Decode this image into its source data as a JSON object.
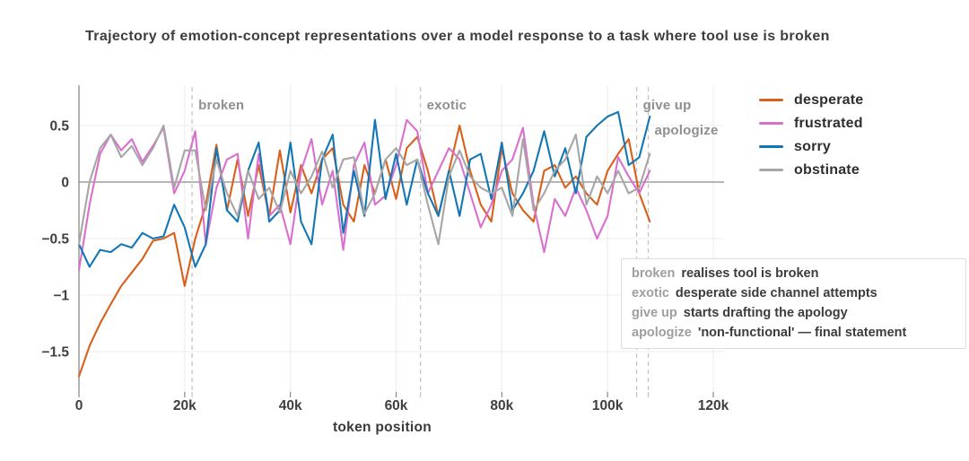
{
  "title": "Trajectory of emotion-concept representations over a model response to a task where tool use is broken",
  "chart_data": {
    "type": "line",
    "title": "Trajectory of emotion-concept representations over a model response to a task where tool use is broken",
    "xlabel": "token position",
    "ylabel": "",
    "xlim": [
      0,
      120
    ],
    "ylim": [
      -1.87,
      0.86
    ],
    "grid": true,
    "legend_position": "right",
    "x_tick_labels": [
      "0",
      "20k",
      "40k",
      "60k",
      "80k",
      "100k",
      "120k"
    ],
    "x_tick_values": [
      0,
      20,
      40,
      60,
      80,
      100,
      120
    ],
    "y_tick_labels": [
      "0.5",
      "0",
      "−0.5",
      "−1",
      "−1.5"
    ],
    "y_tick_values": [
      0.5,
      0,
      -0.5,
      -1,
      -1.5
    ],
    "x": [
      0,
      2,
      4,
      6,
      8,
      10,
      12,
      14,
      16,
      18,
      20,
      22,
      24,
      26,
      28,
      30,
      32,
      34,
      36,
      38,
      40,
      42,
      44,
      46,
      48,
      50,
      52,
      54,
      56,
      58,
      60,
      62,
      64,
      66,
      68,
      70,
      72,
      74,
      76,
      78,
      80,
      82,
      84,
      86,
      88,
      90,
      92,
      94,
      96,
      98,
      100,
      102,
      104,
      106,
      108
    ],
    "series": [
      {
        "name": "desperate",
        "color": "#d9601a",
        "values": [
          -1.72,
          -1.45,
          -1.25,
          -1.08,
          -0.92,
          -0.8,
          -0.68,
          -0.52,
          -0.5,
          -0.45,
          -0.92,
          -0.5,
          -0.2,
          0.33,
          -0.25,
          0.2,
          -0.3,
          0.15,
          -0.3,
          0.28,
          -0.27,
          0.15,
          -0.1,
          0.2,
          0.3,
          -0.2,
          -0.35,
          0.15,
          -0.1,
          0.2,
          -0.15,
          0.3,
          0.4,
          0.1,
          -0.3,
          0.1,
          0.5,
          0.1,
          -0.2,
          -0.35,
          0.3,
          -0.1,
          -0.25,
          -0.35,
          0.1,
          0.15,
          -0.05,
          0.05,
          -0.1,
          -0.2,
          0.1,
          0.25,
          0.38,
          -0.1,
          -0.35
        ]
      },
      {
        "name": "frustrated",
        "color": "#da70ce",
        "values": [
          -0.78,
          -0.2,
          0.25,
          0.42,
          0.28,
          0.38,
          0.18,
          0.32,
          0.48,
          -0.1,
          0.1,
          0.45,
          -0.55,
          -0.05,
          0.2,
          0.25,
          -0.5,
          0.25,
          -0.3,
          -0.2,
          -0.55,
          0.1,
          0.38,
          -0.2,
          0.1,
          -0.6,
          0.15,
          0.35,
          -0.2,
          -0.12,
          0.15,
          0.55,
          0.45,
          -0.1,
          0.1,
          0.3,
          0.2,
          -0.1,
          -0.4,
          -0.2,
          0.1,
          0.2,
          0.48,
          -0.2,
          -0.62,
          -0.15,
          -0.3,
          -0.05,
          -0.25,
          -0.5,
          -0.3,
          0.22,
          0.05,
          -0.1,
          0.1
        ]
      },
      {
        "name": "sorry",
        "color": "#1277b5",
        "values": [
          -0.55,
          -0.75,
          -0.6,
          -0.62,
          -0.55,
          -0.58,
          -0.45,
          -0.5,
          -0.48,
          -0.2,
          -0.4,
          -0.75,
          -0.55,
          0.3,
          -0.25,
          -0.35,
          0.1,
          0.35,
          -0.35,
          -0.25,
          0.35,
          -0.35,
          -0.55,
          0.2,
          0.42,
          -0.45,
          0.1,
          -0.3,
          0.55,
          -0.15,
          0.25,
          -0.2,
          0.2,
          -0.1,
          -0.3,
          0.1,
          -0.3,
          0.2,
          0.25,
          -0.15,
          0.35,
          -0.25,
          -0.1,
          0.1,
          0.45,
          0.05,
          0.3,
          -0.1,
          0.4,
          0.5,
          0.58,
          0.62,
          0.15,
          0.22,
          0.58
        ]
      },
      {
        "name": "obstinate",
        "color": "#a6a6a6",
        "values": [
          -0.55,
          0.0,
          0.3,
          0.42,
          0.22,
          0.32,
          0.15,
          0.3,
          0.5,
          -0.05,
          0.28,
          0.28,
          -0.25,
          0.2,
          -0.1,
          -0.3,
          0.1,
          -0.15,
          -0.05,
          -0.27,
          0.1,
          -0.1,
          0.05,
          0.27,
          -0.05,
          0.2,
          0.22,
          -0.28,
          -0.1,
          0.2,
          0.3,
          0.15,
          0.2,
          -0.2,
          -0.55,
          0.05,
          0.28,
          0.05,
          -0.05,
          -0.1,
          -0.05,
          -0.3,
          0.38,
          -0.25,
          -0.1,
          0.1,
          0.2,
          0.42,
          -0.2,
          0.05,
          -0.1,
          0.1,
          -0.1,
          -0.05,
          0.25
        ]
      }
    ],
    "annotations": [
      {
        "label": "broken",
        "x": 21.4
      },
      {
        "label": "exotic",
        "x": 64.6
      },
      {
        "label": "give up",
        "x": 105.5
      },
      {
        "label": "apologize",
        "x": 107.7
      }
    ]
  },
  "legend": {
    "items": [
      "desperate",
      "frustrated",
      "sorry",
      "obstinate"
    ]
  },
  "annotation_box": {
    "rows": [
      {
        "keyword": "broken",
        "text": "realises tool is broken"
      },
      {
        "keyword": "exotic",
        "text": "desperate side channel attempts"
      },
      {
        "keyword": "give up",
        "text": "starts drafting the apology"
      },
      {
        "keyword": "apologize",
        "text": "'non-functional' — final statement"
      }
    ]
  },
  "colors": {
    "axis": "#8a8a8a",
    "grid": "#ececec",
    "dashed_line": "#c4c4c4",
    "tick_label": "#3f3f3f",
    "axis_label": "#3a3a3a",
    "annotation_label": "#8f8f8f",
    "title": "#3d3d3d"
  }
}
